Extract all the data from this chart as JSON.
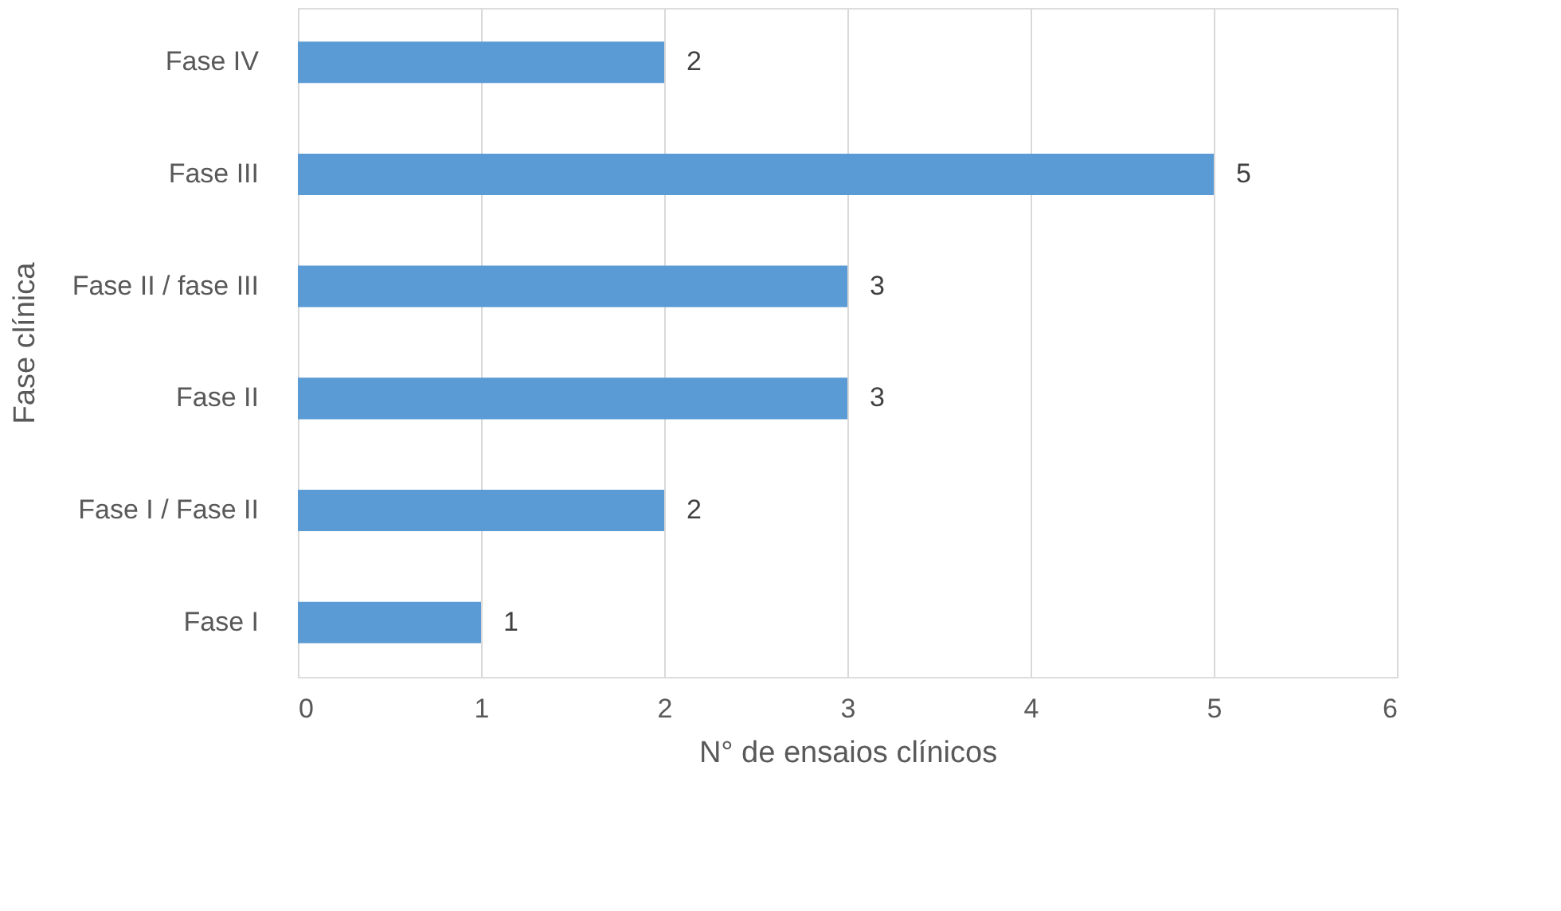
{
  "chart_data": {
    "type": "bar",
    "orientation": "horizontal",
    "xlabel": "N° de ensaios clínicos",
    "ylabel": "Fase clínica",
    "categories": [
      "Fase IV",
      "Fase III",
      "Fase II / fase III",
      "Fase II",
      "Fase I / Fase II",
      "Fase I"
    ],
    "values": [
      2,
      5,
      3,
      3,
      2,
      1
    ],
    "color": "#5b9bd5",
    "xlim": [
      0,
      6
    ],
    "xticks": [
      0,
      1,
      2,
      3,
      4,
      5,
      6
    ],
    "grid": "x",
    "data_labels": true
  }
}
